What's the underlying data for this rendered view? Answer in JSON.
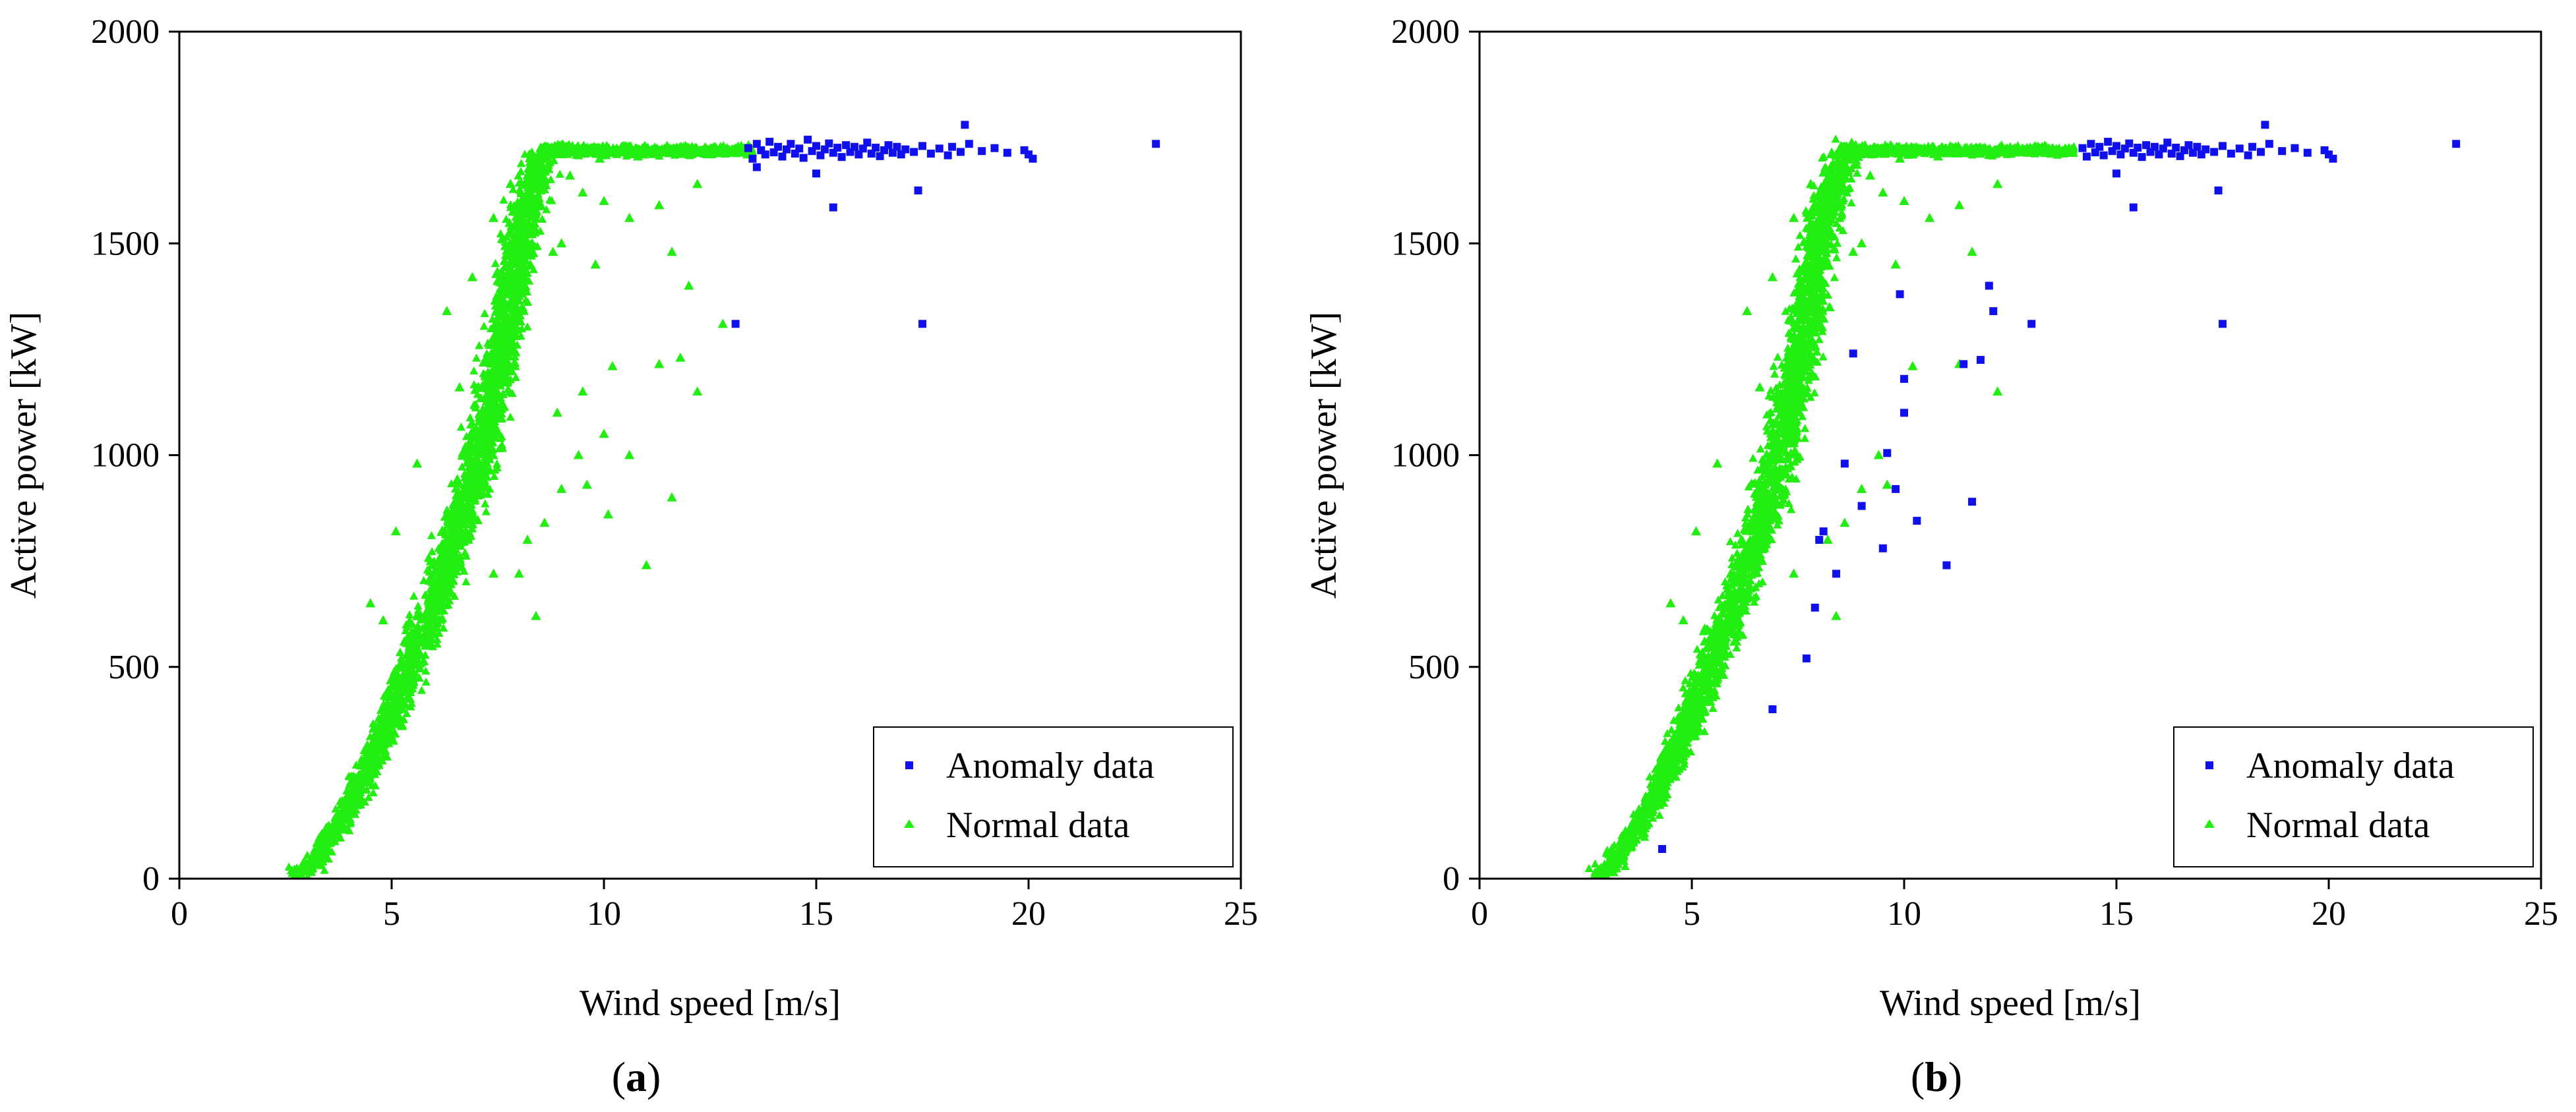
{
  "chart_data": [
    {
      "type": "scatter",
      "panel_label": "a",
      "xlabel": "Wind speed [m/s]",
      "ylabel": "Active power [kW]",
      "xlim": [
        0,
        25
      ],
      "ylim": [
        0,
        2000
      ],
      "xticks": [
        0,
        5,
        10,
        15,
        20,
        25
      ],
      "yticks": [
        0,
        500,
        1000,
        1500,
        2000
      ],
      "grid": false,
      "legend_position": "bottom-right",
      "rated_power": 1720,
      "normal_band": [
        [
          2.7,
          0
        ],
        [
          3.2,
          40
        ],
        [
          4.0,
          170
        ],
        [
          5.0,
          380
        ],
        [
          6.0,
          650
        ],
        [
          7.0,
          960
        ],
        [
          7.6,
          1250
        ],
        [
          8.1,
          1550
        ],
        [
          8.6,
          1720
        ],
        [
          13.5,
          1720
        ]
      ],
      "series": [
        {
          "name": "Anomaly data",
          "color": "#1010ee",
          "marker": "square",
          "points": [
            [
              13.4,
              1725
            ],
            [
              13.5,
              1700
            ],
            [
              13.6,
              1735
            ],
            [
              13.7,
              1720
            ],
            [
              13.8,
              1710
            ],
            [
              13.9,
              1740
            ],
            [
              14.0,
              1715
            ],
            [
              14.1,
              1728
            ],
            [
              14.2,
              1705
            ],
            [
              14.3,
              1722
            ],
            [
              14.4,
              1735
            ],
            [
              14.5,
              1712
            ],
            [
              14.6,
              1724
            ],
            [
              14.7,
              1702
            ],
            [
              14.8,
              1745
            ],
            [
              14.9,
              1718
            ],
            [
              15.0,
              1730
            ],
            [
              15.1,
              1708
            ],
            [
              15.2,
              1722
            ],
            [
              15.3,
              1736
            ],
            [
              15.4,
              1714
            ],
            [
              15.5,
              1726
            ],
            [
              15.6,
              1704
            ],
            [
              15.7,
              1732
            ],
            [
              15.8,
              1716
            ],
            [
              15.9,
              1728
            ],
            [
              16.0,
              1710
            ],
            [
              16.1,
              1724
            ],
            [
              16.2,
              1738
            ],
            [
              16.3,
              1712
            ],
            [
              16.4,
              1726
            ],
            [
              16.5,
              1706
            ],
            [
              16.6,
              1720
            ],
            [
              16.7,
              1732
            ],
            [
              16.8,
              1714
            ],
            [
              16.9,
              1728
            ],
            [
              17.0,
              1710
            ],
            [
              17.1,
              1722
            ],
            [
              17.3,
              1716
            ],
            [
              17.5,
              1730
            ],
            [
              17.7,
              1712
            ],
            [
              17.9,
              1724
            ],
            [
              18.1,
              1708
            ],
            [
              18.2,
              1728
            ],
            [
              18.4,
              1716
            ],
            [
              18.6,
              1735
            ],
            [
              18.9,
              1718
            ],
            [
              19.2,
              1725
            ],
            [
              19.5,
              1714
            ],
            [
              19.9,
              1720
            ],
            [
              20.0,
              1710
            ],
            [
              20.1,
              1700
            ],
            [
              23.0,
              1735
            ],
            [
              18.5,
              1780
            ],
            [
              15.0,
              1665
            ],
            [
              15.4,
              1585
            ],
            [
              17.4,
              1625
            ],
            [
              17.5,
              1310
            ],
            [
              13.1,
              1310
            ],
            [
              13.6,
              1680
            ]
          ]
        },
        {
          "name": "Normal data",
          "color": "#22ee11",
          "marker": "triangle",
          "points": [
            [
              9.2,
              1660
            ],
            [
              9.5,
              1620
            ],
            [
              10.0,
              1600
            ],
            [
              10.6,
              1560
            ],
            [
              11.3,
              1590
            ],
            [
              12.2,
              1640
            ],
            [
              9.0,
              1500
            ],
            [
              9.8,
              1450
            ],
            [
              11.6,
              1480
            ],
            [
              12.0,
              1400
            ],
            [
              12.8,
              1310
            ],
            [
              11.3,
              1215
            ],
            [
              11.8,
              1230
            ],
            [
              12.2,
              1150
            ],
            [
              10.2,
              1210
            ],
            [
              10.0,
              1050
            ],
            [
              9.4,
              1000
            ],
            [
              8.9,
              1100
            ],
            [
              9.0,
              920
            ],
            [
              9.6,
              930
            ],
            [
              10.1,
              860
            ],
            [
              11.6,
              900
            ],
            [
              11.0,
              740
            ],
            [
              8.6,
              840
            ],
            [
              8.2,
              800
            ],
            [
              8.0,
              720
            ],
            [
              8.4,
              620
            ],
            [
              7.4,
              720
            ],
            [
              6.8,
              880
            ],
            [
              7.2,
              1050
            ],
            [
              6.6,
              1160
            ],
            [
              6.3,
              1340
            ],
            [
              6.9,
              1420
            ],
            [
              7.4,
              1560
            ],
            [
              7.8,
              1640
            ],
            [
              5.6,
              980
            ],
            [
              5.1,
              820
            ],
            [
              4.5,
              650
            ],
            [
              4.8,
              610
            ],
            [
              5.3,
              560
            ],
            [
              9.5,
              1150
            ],
            [
              10.6,
              1000
            ],
            [
              8.8,
              1480
            ],
            [
              9.9,
              1700
            ],
            [
              10.8,
              1705
            ]
          ]
        }
      ]
    },
    {
      "type": "scatter",
      "panel_label": "b",
      "xlabel": "Wind speed [m/s]",
      "ylabel": "Active power [kW]",
      "xlim": [
        0,
        25
      ],
      "ylim": [
        0,
        2000
      ],
      "xticks": [
        0,
        5,
        10,
        15,
        20,
        25
      ],
      "yticks": [
        0,
        500,
        1000,
        1500,
        2000
      ],
      "grid": false,
      "legend_position": "bottom-right",
      "rated_power": 1720,
      "normal_band": [
        [
          2.7,
          0
        ],
        [
          3.2,
          40
        ],
        [
          4.0,
          170
        ],
        [
          5.0,
          380
        ],
        [
          6.0,
          650
        ],
        [
          7.0,
          960
        ],
        [
          7.6,
          1250
        ],
        [
          8.1,
          1550
        ],
        [
          8.6,
          1720
        ],
        [
          14.0,
          1720
        ]
      ],
      "series": [
        {
          "name": "Anomaly data",
          "color": "#1010ee",
          "marker": "square",
          "points": [
            [
              14.2,
              1725
            ],
            [
              14.3,
              1705
            ],
            [
              14.4,
              1735
            ],
            [
              14.5,
              1715
            ],
            [
              14.6,
              1728
            ],
            [
              14.7,
              1708
            ],
            [
              14.8,
              1740
            ],
            [
              14.9,
              1718
            ],
            [
              15.0,
              1730
            ],
            [
              15.1,
              1710
            ],
            [
              15.2,
              1724
            ],
            [
              15.3,
              1736
            ],
            [
              15.4,
              1714
            ],
            [
              15.5,
              1726
            ],
            [
              15.6,
              1704
            ],
            [
              15.7,
              1732
            ],
            [
              15.8,
              1716
            ],
            [
              15.9,
              1728
            ],
            [
              16.0,
              1710
            ],
            [
              16.1,
              1724
            ],
            [
              16.2,
              1738
            ],
            [
              16.3,
              1712
            ],
            [
              16.4,
              1726
            ],
            [
              16.5,
              1706
            ],
            [
              16.6,
              1720
            ],
            [
              16.7,
              1732
            ],
            [
              16.8,
              1714
            ],
            [
              16.9,
              1728
            ],
            [
              17.0,
              1710
            ],
            [
              17.1,
              1722
            ],
            [
              17.3,
              1716
            ],
            [
              17.5,
              1730
            ],
            [
              17.7,
              1712
            ],
            [
              17.9,
              1724
            ],
            [
              18.1,
              1708
            ],
            [
              18.2,
              1728
            ],
            [
              18.4,
              1716
            ],
            [
              18.6,
              1735
            ],
            [
              18.9,
              1718
            ],
            [
              19.2,
              1725
            ],
            [
              19.5,
              1714
            ],
            [
              19.9,
              1720
            ],
            [
              20.0,
              1710
            ],
            [
              20.1,
              1700
            ],
            [
              23.0,
              1735
            ],
            [
              18.5,
              1780
            ],
            [
              15.0,
              1665
            ],
            [
              15.4,
              1585
            ],
            [
              17.4,
              1625
            ],
            [
              17.5,
              1310
            ],
            [
              13.0,
              1310
            ],
            [
              12.0,
              1400
            ],
            [
              12.1,
              1340
            ],
            [
              9.9,
              1380
            ],
            [
              11.8,
              1225
            ],
            [
              11.4,
              1215
            ],
            [
              8.8,
              1240
            ],
            [
              10.0,
              1180
            ],
            [
              10.0,
              1100
            ],
            [
              9.6,
              1005
            ],
            [
              9.8,
              920
            ],
            [
              11.6,
              890
            ],
            [
              8.6,
              980
            ],
            [
              9.0,
              880
            ],
            [
              8.1,
              820
            ],
            [
              8.0,
              800
            ],
            [
              10.3,
              845
            ],
            [
              9.5,
              780
            ],
            [
              11.0,
              740
            ],
            [
              8.4,
              720
            ],
            [
              7.9,
              640
            ],
            [
              7.7,
              520
            ],
            [
              6.9,
              400
            ],
            [
              4.3,
              70
            ]
          ]
        },
        {
          "name": "Normal data",
          "color": "#22ee11",
          "marker": "triangle",
          "points": [
            [
              9.2,
              1660
            ],
            [
              9.5,
              1620
            ],
            [
              10.0,
              1600
            ],
            [
              10.6,
              1560
            ],
            [
              11.3,
              1590
            ],
            [
              12.2,
              1640
            ],
            [
              9.0,
              1500
            ],
            [
              9.8,
              1450
            ],
            [
              11.6,
              1480
            ],
            [
              11.3,
              1215
            ],
            [
              12.2,
              1150
            ],
            [
              10.2,
              1210
            ],
            [
              9.4,
              1000
            ],
            [
              9.0,
              920
            ],
            [
              9.6,
              930
            ],
            [
              8.6,
              840
            ],
            [
              8.2,
              800
            ],
            [
              8.4,
              620
            ],
            [
              7.4,
              720
            ],
            [
              6.8,
              880
            ],
            [
              7.2,
              1050
            ],
            [
              6.6,
              1160
            ],
            [
              6.3,
              1340
            ],
            [
              6.9,
              1420
            ],
            [
              7.4,
              1560
            ],
            [
              7.8,
              1640
            ],
            [
              5.6,
              980
            ],
            [
              5.1,
              820
            ],
            [
              4.5,
              650
            ],
            [
              4.8,
              610
            ],
            [
              5.3,
              560
            ],
            [
              8.8,
              1480
            ],
            [
              9.9,
              1700
            ],
            [
              10.8,
              1705
            ]
          ]
        }
      ]
    }
  ]
}
